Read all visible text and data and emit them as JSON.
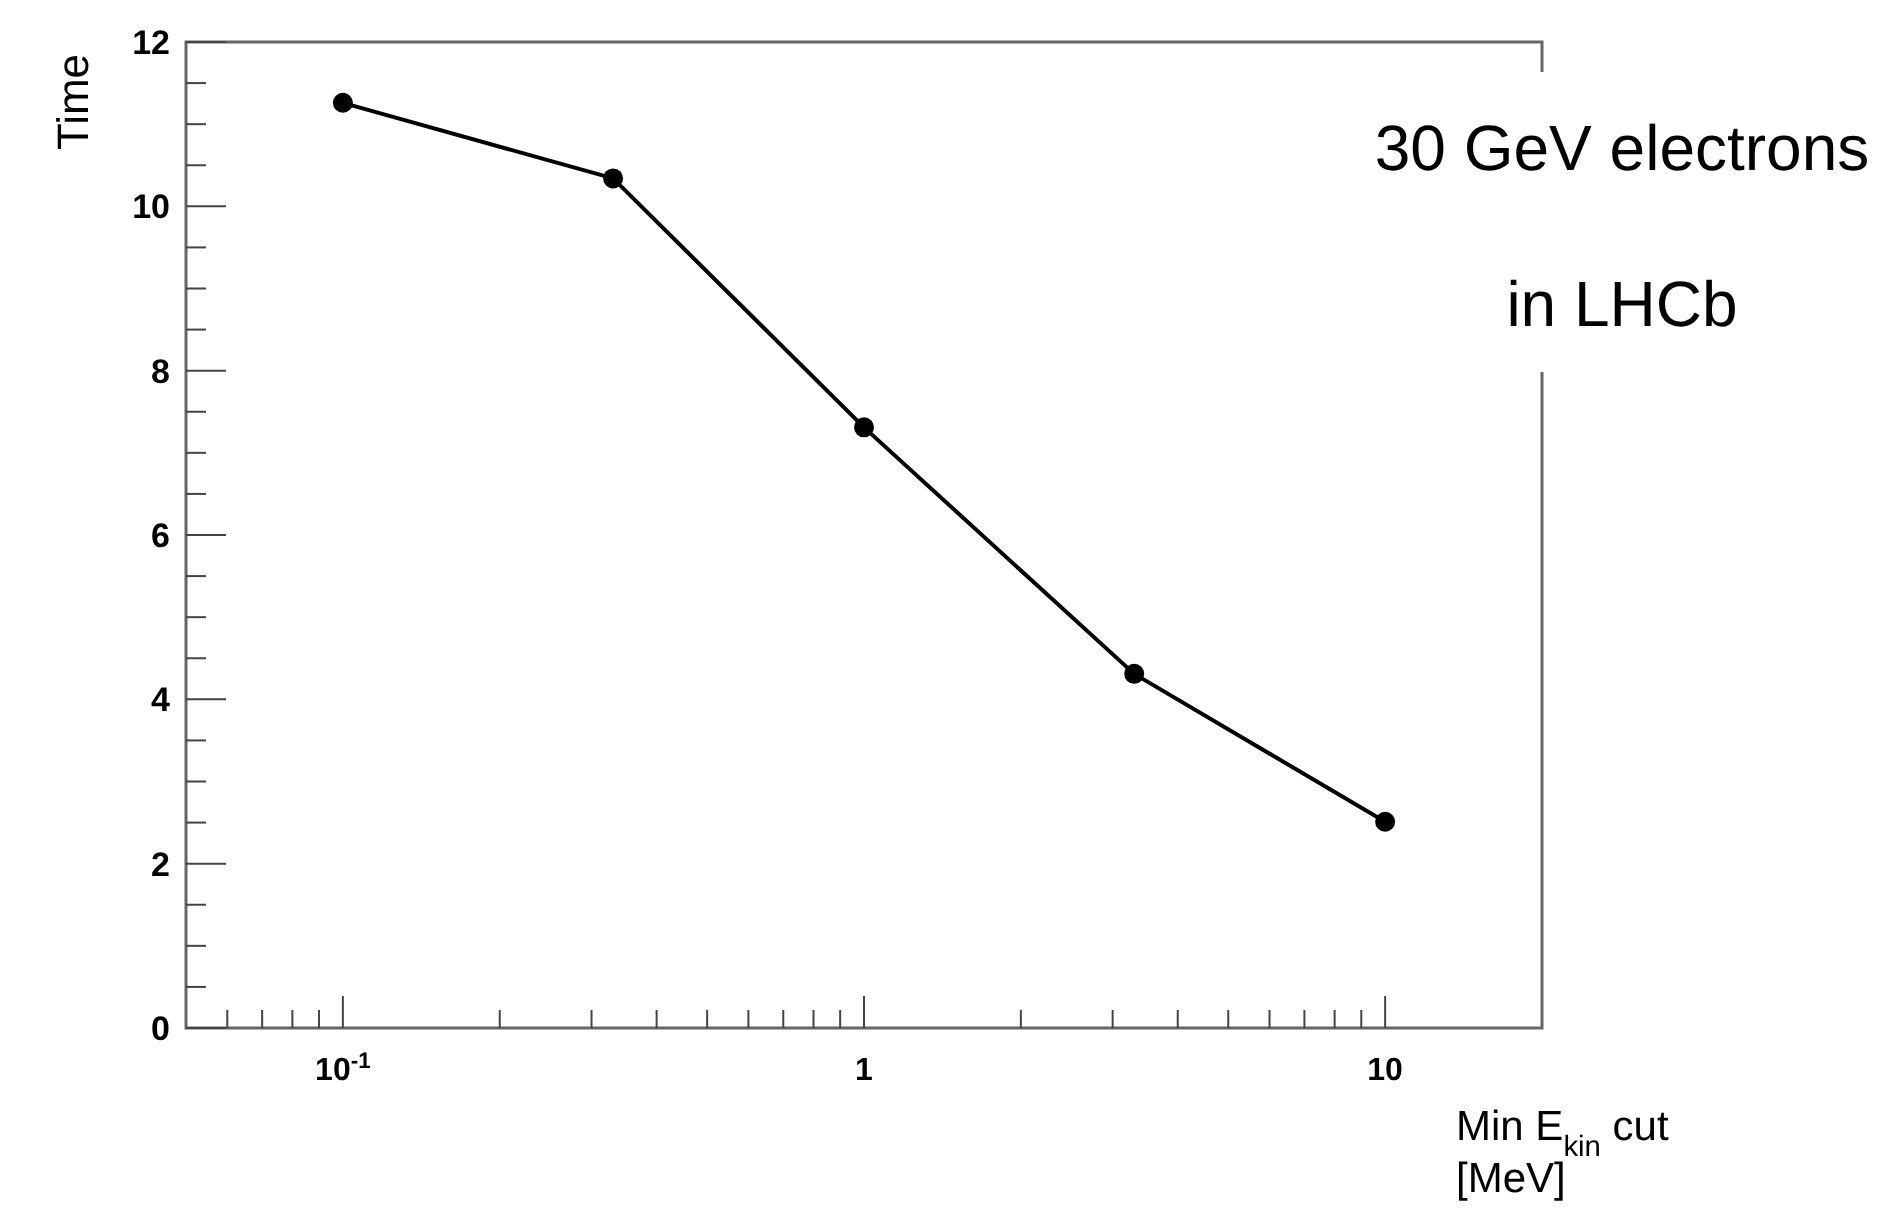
{
  "chart_data": {
    "type": "line",
    "xlabel": "Min E$_{kin}$ cut [MeV]",
    "ylabel": "Time",
    "annotations": [
      "30 GeV electrons",
      "in LHCb"
    ],
    "log": "x",
    "marker": "circle",
    "line_style": "solid",
    "x": [
      0.1,
      0.33,
      1,
      3.3,
      10
    ],
    "series": [
      {
        "color": "#000000",
        "values": [
          11.26,
          10.34,
          7.31,
          4.31,
          2.51
        ]
      }
    ],
    "xlim": [
      0.05,
      20
    ],
    "xticks": [
      {
        "value": 0.06,
        "label": null
      },
      {
        "value": 0.07,
        "label": null
      },
      {
        "value": 0.08,
        "label": null
      },
      {
        "value": 0.09,
        "label": null
      },
      {
        "value": 0.1,
        "label": "10$^{-1}$"
      },
      {
        "value": 0.2,
        "label": null
      },
      {
        "value": 0.3,
        "label": null
      },
      {
        "value": 0.4,
        "label": null
      },
      {
        "value": 0.5,
        "label": null
      },
      {
        "value": 0.6,
        "label": null
      },
      {
        "value": 0.7,
        "label": null
      },
      {
        "value": 0.8,
        "label": null
      },
      {
        "value": 0.9,
        "label": null
      },
      1,
      {
        "value": 2,
        "label": null
      },
      {
        "value": 3,
        "label": null
      },
      {
        "value": 4,
        "label": null
      },
      {
        "value": 5,
        "label": null
      },
      {
        "value": 6,
        "label": null
      },
      {
        "value": 7,
        "label": null
      },
      {
        "value": 8,
        "label": null
      },
      {
        "value": 9,
        "label": null
      },
      10
    ],
    "ylim": [
      0,
      12
    ],
    "yticks": [
      0,
      {
        "value": 0.5,
        "label": null
      },
      {
        "value": 1,
        "label": null
      },
      {
        "value": 1.5,
        "label": null
      },
      2,
      {
        "value": 2.5,
        "label": null
      },
      {
        "value": 3,
        "label": null
      },
      {
        "value": 3.5,
        "label": null
      },
      4,
      {
        "value": 4.5,
        "label": null
      },
      {
        "value": 5,
        "label": null
      },
      {
        "value": 5.5,
        "label": null
      },
      6,
      {
        "value": 6.5,
        "label": null
      },
      {
        "value": 7,
        "label": null
      },
      {
        "value": 7.5,
        "label": null
      },
      8,
      {
        "value": 8.5,
        "label": null
      },
      {
        "value": 9,
        "label": null
      },
      {
        "value": 9.5,
        "label": null
      },
      10,
      {
        "value": 10.5,
        "label": null
      },
      {
        "value": 11,
        "label": null
      },
      {
        "value": 11.5,
        "label": null
      },
      12
    ],
    "grid": false
  }
}
